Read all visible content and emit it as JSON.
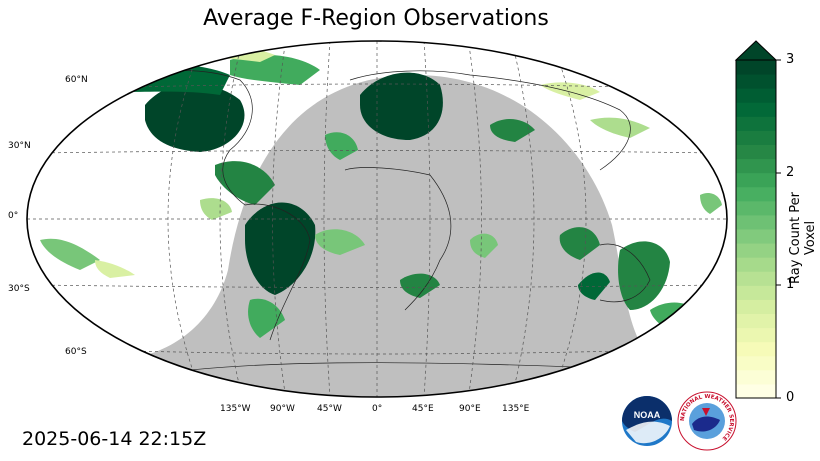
{
  "title": "Average F-Region Observations",
  "timestamp": "2025-06-14 22:15Z",
  "colorbar": {
    "label": "Ray Count Per Voxel",
    "ticks": [
      "0",
      "1",
      "2",
      "3"
    ],
    "min": 0,
    "max": 3,
    "colors": [
      "#ffffe5",
      "#f7fcb9",
      "#d9f0a3",
      "#addd8e",
      "#78c679",
      "#41ab5d",
      "#238443",
      "#006837",
      "#004529"
    ]
  },
  "latitude_labels": [
    "60°N",
    "30°N",
    "0°",
    "30°S",
    "60°S"
  ],
  "longitude_labels": [
    "135°W",
    "90°W",
    "45°W",
    "0°",
    "45°E",
    "90°E",
    "135°E"
  ],
  "night_shading_color": "#bfbfbf",
  "logos": {
    "noaa": "NOAA",
    "nws": "NATIONAL WEATHER SERVICE"
  }
}
